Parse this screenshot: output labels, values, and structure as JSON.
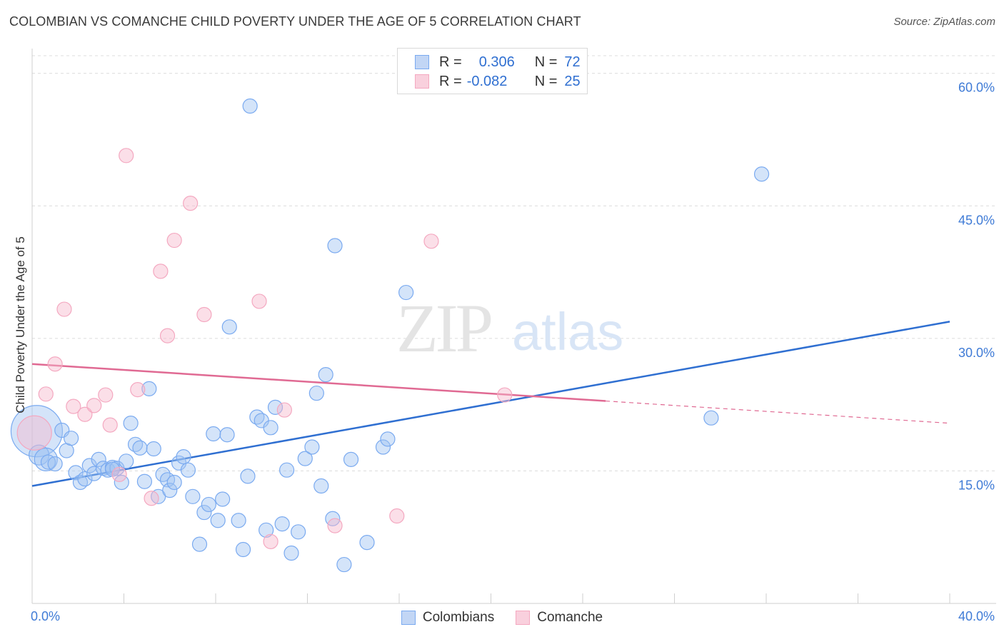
{
  "title": "COLOMBIAN VS COMANCHE CHILD POVERTY UNDER THE AGE OF 5 CORRELATION CHART",
  "source": "Source: ZipAtlas.com",
  "watermark": {
    "zip": "ZIP",
    "atlas": "atlas"
  },
  "legend": {
    "rows": [
      {
        "r_label": "R =",
        "r_value": "0.306",
        "n_label": "N =",
        "n_value": "72"
      },
      {
        "r_label": "R =",
        "r_value": "-0.082",
        "n_label": "N =",
        "n_value": "25"
      }
    ]
  },
  "chart_data": {
    "type": "scatter",
    "ylabel": "Child Poverty Under the Age of 5",
    "xlim": [
      0,
      40
    ],
    "ylim": [
      0,
      62
    ],
    "x_tick_labels": [
      "0.0%",
      "40.0%"
    ],
    "y_tick_values": [
      15,
      30,
      45,
      60
    ],
    "y_tick_labels": [
      "15.0%",
      "30.0%",
      "45.0%",
      "60.0%"
    ],
    "grid": true,
    "legend_position": "top-center",
    "series": [
      {
        "name": "Colombians",
        "color": "#7aaaf0",
        "line_color": "#2f6fd1",
        "trend": {
          "x": [
            0,
            40
          ],
          "y": [
            13.3,
            31.9
          ]
        },
        "points": [
          [
            0.2,
            19.5
          ],
          [
            0.3,
            16.8
          ],
          [
            0.6,
            16.3
          ],
          [
            0.7,
            16.0
          ],
          [
            1.0,
            15.8
          ],
          [
            1.3,
            19.6
          ],
          [
            1.5,
            17.3
          ],
          [
            1.7,
            18.7
          ],
          [
            1.9,
            14.8
          ],
          [
            2.1,
            13.7
          ],
          [
            2.3,
            14.1
          ],
          [
            2.5,
            15.6
          ],
          [
            2.7,
            14.7
          ],
          [
            2.9,
            16.3
          ],
          [
            3.1,
            15.3
          ],
          [
            3.3,
            15.1
          ],
          [
            3.5,
            15.4
          ],
          [
            3.7,
            15.3
          ],
          [
            3.9,
            13.7
          ],
          [
            4.1,
            16.1
          ],
          [
            4.3,
            20.4
          ],
          [
            4.5,
            18.0
          ],
          [
            4.7,
            17.6
          ],
          [
            4.9,
            13.8
          ],
          [
            5.1,
            24.3
          ],
          [
            5.3,
            17.5
          ],
          [
            5.5,
            12.1
          ],
          [
            5.7,
            14.6
          ],
          [
            5.9,
            14.0
          ],
          [
            6.0,
            12.8
          ],
          [
            6.2,
            13.7
          ],
          [
            6.4,
            15.9
          ],
          [
            6.6,
            16.6
          ],
          [
            6.8,
            15.1
          ],
          [
            7.0,
            12.1
          ],
          [
            7.3,
            6.7
          ],
          [
            7.5,
            10.3
          ],
          [
            7.7,
            11.2
          ],
          [
            7.9,
            19.2
          ],
          [
            8.1,
            9.4
          ],
          [
            8.3,
            11.8
          ],
          [
            8.5,
            19.1
          ],
          [
            8.6,
            31.3
          ],
          [
            9.0,
            9.4
          ],
          [
            9.2,
            6.1
          ],
          [
            9.4,
            14.4
          ],
          [
            9.5,
            56.3
          ],
          [
            9.8,
            21.1
          ],
          [
            10.0,
            20.7
          ],
          [
            10.2,
            8.3
          ],
          [
            10.4,
            19.9
          ],
          [
            10.6,
            22.2
          ],
          [
            10.9,
            9.0
          ],
          [
            11.1,
            15.1
          ],
          [
            11.3,
            5.7
          ],
          [
            11.6,
            8.1
          ],
          [
            11.9,
            16.4
          ],
          [
            12.2,
            17.7
          ],
          [
            12.4,
            23.8
          ],
          [
            12.6,
            13.3
          ],
          [
            12.8,
            25.9
          ],
          [
            13.1,
            9.6
          ],
          [
            13.2,
            40.5
          ],
          [
            13.6,
            4.4
          ],
          [
            13.9,
            16.3
          ],
          [
            14.6,
            6.9
          ],
          [
            15.3,
            17.7
          ],
          [
            15.5,
            18.6
          ],
          [
            16.3,
            35.2
          ],
          [
            29.6,
            21.0
          ],
          [
            31.8,
            48.6
          ],
          [
            3.5,
            15.2
          ]
        ],
        "sizes": [
          36,
          14,
          16,
          10,
          10,
          10,
          10,
          10,
          10,
          10,
          10,
          10,
          10,
          10,
          10,
          10,
          10,
          10,
          10,
          10,
          10,
          10,
          10,
          10,
          10,
          10,
          10,
          10,
          10,
          10,
          10,
          10,
          10,
          10,
          10,
          10,
          10,
          10,
          10,
          10,
          10,
          10,
          10,
          10,
          10,
          10,
          10,
          10,
          10,
          10,
          10,
          10,
          10,
          10,
          10,
          10,
          10,
          10,
          10,
          10,
          10,
          10,
          10,
          10,
          10,
          10,
          10,
          10,
          10,
          10,
          10,
          10
        ]
      },
      {
        "name": "Comanche",
        "color": "#f4a8c0",
        "line_color": "#e06a93",
        "trend": {
          "x": [
            0,
            40
          ],
          "y": [
            27.1,
            20.4
          ],
          "solid_until": 25
        },
        "points": [
          [
            0.1,
            19.3
          ],
          [
            1.0,
            27.1
          ],
          [
            1.4,
            33.3
          ],
          [
            1.8,
            22.3
          ],
          [
            2.3,
            21.4
          ],
          [
            2.7,
            22.4
          ],
          [
            3.2,
            23.6
          ],
          [
            3.4,
            20.2
          ],
          [
            3.8,
            14.6
          ],
          [
            4.1,
            50.7
          ],
          [
            4.6,
            24.2
          ],
          [
            5.2,
            11.9
          ],
          [
            5.6,
            37.6
          ],
          [
            5.9,
            30.3
          ],
          [
            6.2,
            41.1
          ],
          [
            6.9,
            45.3
          ],
          [
            7.5,
            32.7
          ],
          [
            9.9,
            34.2
          ],
          [
            10.4,
            7.0
          ],
          [
            11.0,
            21.9
          ],
          [
            13.2,
            8.8
          ],
          [
            15.9,
            9.9
          ],
          [
            17.4,
            41.0
          ],
          [
            20.6,
            23.6
          ],
          [
            0.6,
            23.7
          ]
        ],
        "sizes": [
          24,
          10,
          10,
          10,
          10,
          10,
          10,
          10,
          10,
          10,
          10,
          10,
          10,
          10,
          10,
          10,
          10,
          10,
          10,
          10,
          10,
          10,
          10,
          10,
          10
        ]
      }
    ]
  }
}
